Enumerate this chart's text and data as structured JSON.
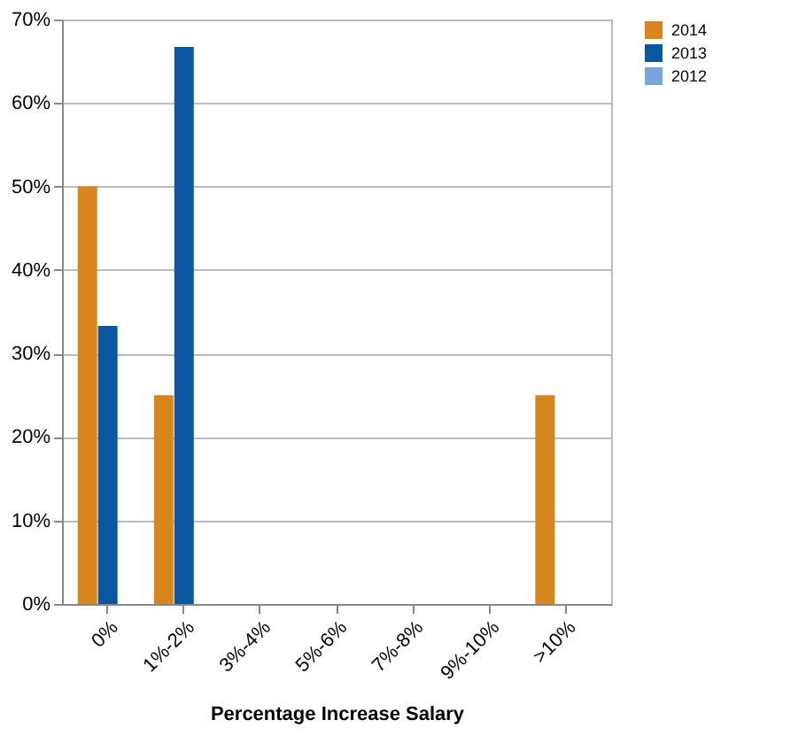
{
  "chart_data": {
    "type": "bar",
    "xlabel": "Percentage Increase Salary",
    "categories": [
      "0%",
      "1%-2%",
      "3%-4%",
      "5%-6%",
      "7%-8%",
      "9%-10%",
      ">10%"
    ],
    "series": [
      {
        "name": "2014",
        "color": "#d6861c",
        "values": [
          50,
          25,
          0,
          0,
          0,
          0,
          25
        ]
      },
      {
        "name": "2013",
        "color": "#0a56a0",
        "values": [
          33.3,
          66.7,
          0,
          0,
          0,
          0,
          0
        ]
      },
      {
        "name": "2012",
        "color": "#7aa5d8",
        "values": [
          0,
          0,
          0,
          0,
          0,
          0,
          0
        ]
      }
    ],
    "ylim": [
      0,
      70
    ],
    "yticks": [
      {
        "value": 0,
        "label": "0%"
      },
      {
        "value": 10,
        "label": "10%"
      },
      {
        "value": 20,
        "label": "20%"
      },
      {
        "value": 30,
        "label": "30%"
      },
      {
        "value": 40,
        "label": "40%"
      },
      {
        "value": 50,
        "label": "50%"
      },
      {
        "value": 60,
        "label": "60%"
      },
      {
        "value": 70,
        "label": "70%"
      }
    ],
    "grid": "y",
    "legend": "right"
  }
}
